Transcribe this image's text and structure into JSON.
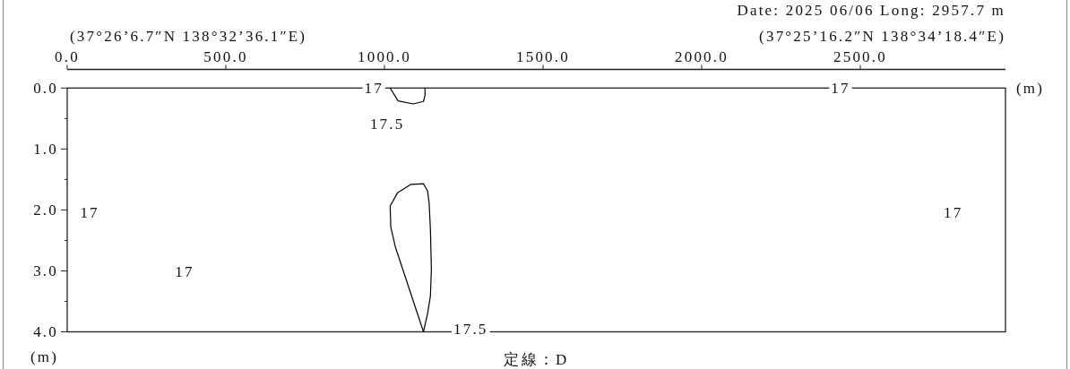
{
  "chart_data": {
    "type": "line",
    "title": "定線：D",
    "subtitle": "Date: 2025 06/06 Long: 2957.7 m",
    "xlabel": "(m)",
    "ylabel": "(m)",
    "xlim": [
      0,
      2957.7
    ],
    "xticks": [
      {
        "value": 0,
        "label": "0.0"
      },
      {
        "value": 500,
        "label": "500.0"
      },
      {
        "value": 1000,
        "label": "1000.0"
      },
      {
        "value": 1500,
        "label": "1500.0"
      },
      {
        "value": 2000,
        "label": "2000.0"
      },
      {
        "value": 2500,
        "label": "2500.0"
      }
    ],
    "ylim": [
      4.0,
      0
    ],
    "yticks": [
      {
        "value": 0,
        "label": "0.0"
      },
      {
        "value": 0.5,
        "label": null
      },
      {
        "value": 1,
        "label": "1.0"
      },
      {
        "value": 1.5,
        "label": null
      },
      {
        "value": 2,
        "label": "2.0"
      },
      {
        "value": 2.5,
        "label": null
      },
      {
        "value": 3,
        "label": "3.0"
      },
      {
        "value": 3.5,
        "label": null
      },
      {
        "value": 4,
        "label": "4.0"
      }
    ],
    "series": [
      {
        "color": "#000000",
        "x": [
          1018,
          1043,
          1090,
          1123,
          1128,
          1128
        ],
        "values": [
          0,
          0.21,
          0.26,
          0.22,
          0.12,
          0
        ]
      },
      {
        "color": "#000000",
        "x": [
          1123,
          1034,
          1020,
          1018,
          null,
          1018,
          1041,
          1084,
          1123,
          1136,
          1141,
          1145,
          1148,
          null,
          1148,
          1145,
          1136,
          1123
        ],
        "values": [
          4.0,
          2.6,
          2.28,
          1.94,
          null,
          1.94,
          1.72,
          1.58,
          1.57,
          1.69,
          1.89,
          2.33,
          2.97,
          null,
          2.97,
          3.41,
          3.7,
          4.0
        ]
      }
    ],
    "annotations": [
      "(37°26’6.7″N 138°32’36.1″E)",
      "(37°25’16.2″N 138°34’18.4″E)",
      {
        "text": "17",
        "x": 967,
        "y": 0
      },
      {
        "text": "17",
        "x": 2438,
        "y": 0
      },
      {
        "text": "17.5",
        "x": 1009,
        "y": 0.59
      },
      {
        "text": "17",
        "x": 71,
        "y": 2.04
      },
      {
        "text": "17",
        "x": 370,
        "y": 3.01
      },
      {
        "text": "17",
        "x": 2793,
        "y": 2.04
      },
      {
        "text": "17.5",
        "x": 1272,
        "y": 3.95
      }
    ],
    "line_style": "solid"
  }
}
